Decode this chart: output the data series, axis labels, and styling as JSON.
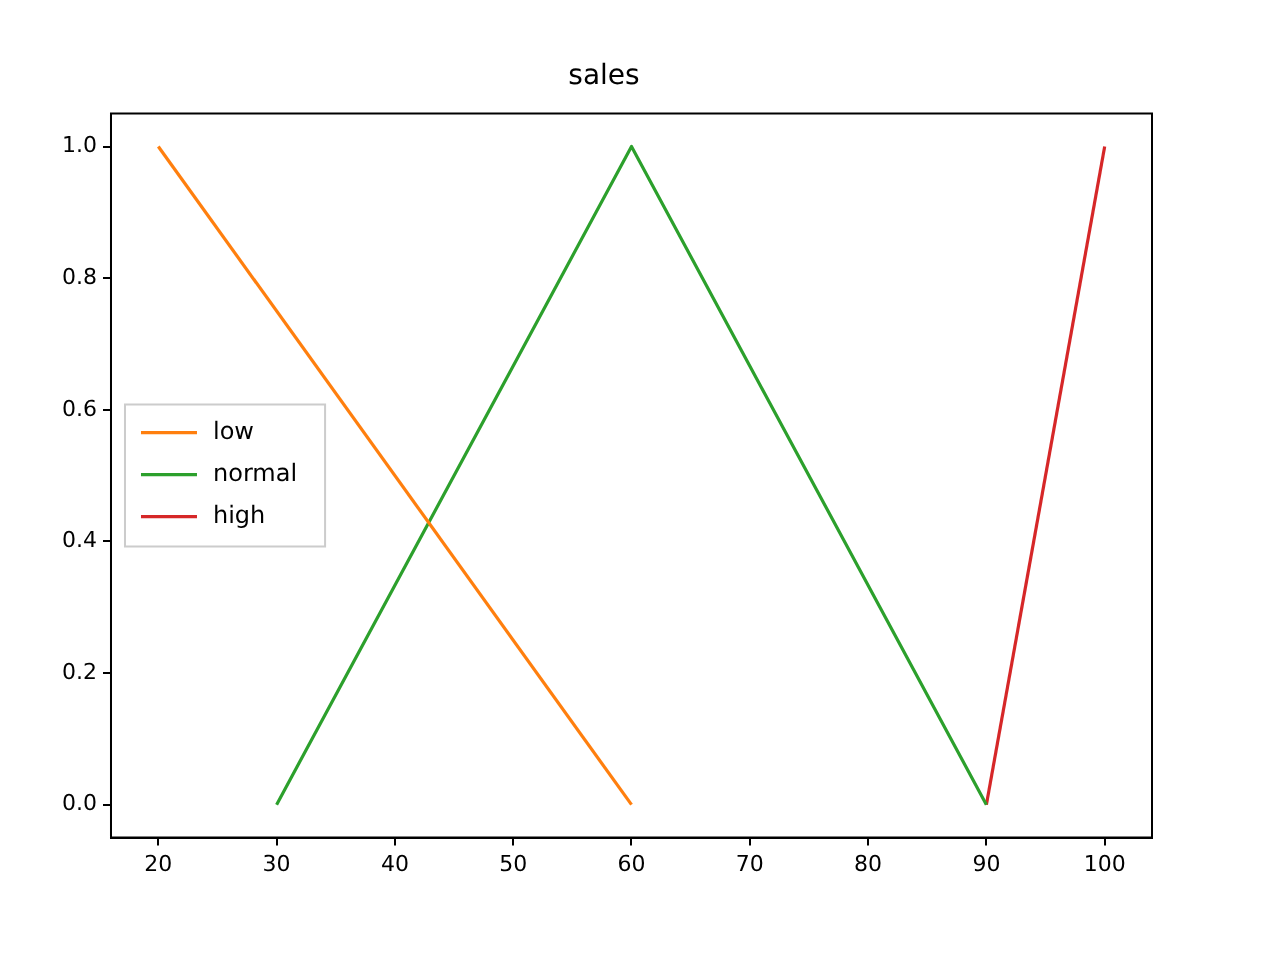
{
  "chart_data": {
    "type": "line",
    "title": "sales",
    "xlim": [
      16,
      104
    ],
    "xticks": [
      20,
      30,
      40,
      50,
      60,
      70,
      80,
      90,
      100
    ],
    "ylim": [
      -0.05,
      1.05
    ],
    "yticks": [
      {
        "value": 0,
        "label": "0.0"
      },
      {
        "value": 0.2,
        "label": "0.2"
      },
      {
        "value": 0.4,
        "label": "0.4"
      },
      {
        "value": 0.6,
        "label": "0.6"
      },
      {
        "value": 0.8,
        "label": "0.8"
      },
      {
        "value": 1,
        "label": "1.0"
      }
    ],
    "grid": false,
    "legend": "center left",
    "marker": "none",
    "line_style": "solid",
    "series": [
      {
        "name": "low",
        "color": "#ff7f0e",
        "x": [
          20,
          60
        ],
        "values": [
          1,
          0
        ]
      },
      {
        "name": "normal",
        "color": "#2ca02c",
        "x": [
          30,
          60,
          90
        ],
        "values": [
          0,
          1,
          0
        ]
      },
      {
        "name": "high",
        "color": "#d62728",
        "x": [
          90,
          100
        ],
        "values": [
          0,
          1
        ]
      }
    ]
  }
}
